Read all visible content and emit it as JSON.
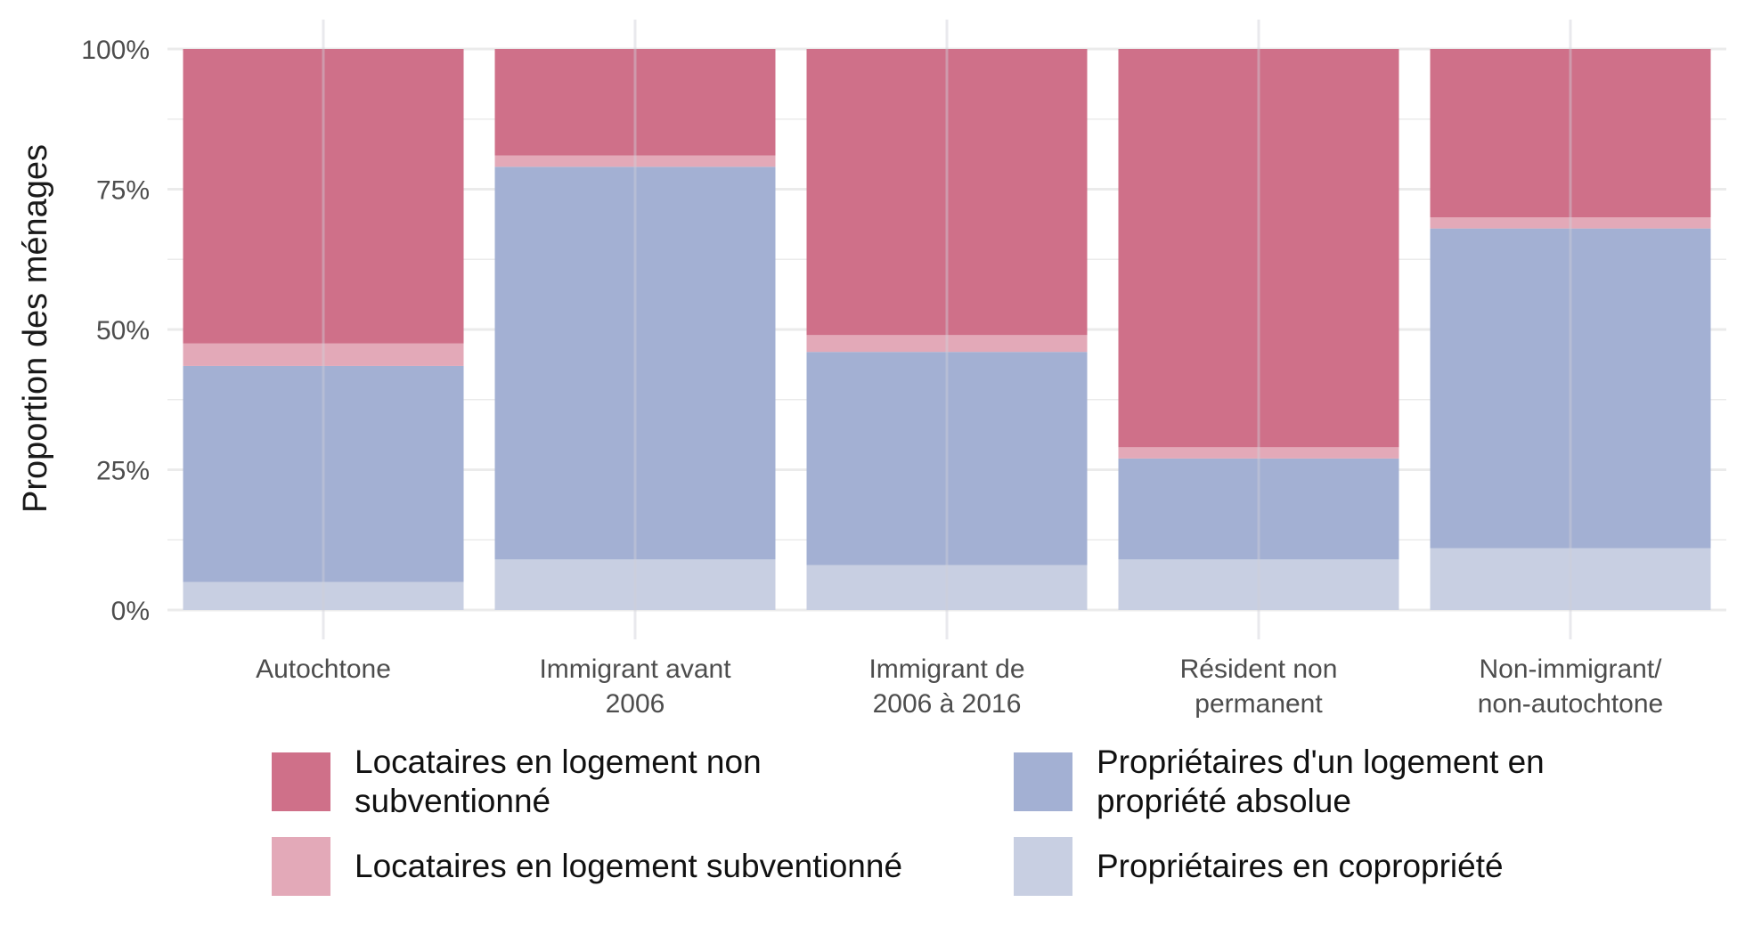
{
  "chart_data": {
    "type": "bar",
    "stacked": true,
    "orientation": "vertical",
    "title": "",
    "xlabel": "",
    "ylabel": "Proportion des ménages",
    "ylim": [
      0,
      100
    ],
    "y_ticks": [
      "0%",
      "25%",
      "50%",
      "75%",
      "100%"
    ],
    "y_tick_values": [
      0,
      25,
      50,
      75,
      100
    ],
    "grid": true,
    "legend_position": "bottom",
    "categories": [
      [
        "Autochtone"
      ],
      [
        "Immigrant avant",
        "2006"
      ],
      [
        "Immigrant de",
        "2006 à 2016"
      ],
      [
        "Résident non",
        "permanent"
      ],
      [
        "Non-immigrant/",
        "non-autochtone"
      ]
    ],
    "series": [
      {
        "name": "Propriétaires en copropriété",
        "color": "#c8cfe2",
        "values": [
          5,
          9,
          8,
          9,
          11
        ]
      },
      {
        "name": "Propriétaires d'un logement en propriété absolue",
        "color": "#a3b0d3",
        "values": [
          38.5,
          70,
          38,
          18,
          57
        ]
      },
      {
        "name": "Locataires en logement subventionné",
        "color": "#e3a9b8",
        "values": [
          4,
          2,
          3,
          2,
          2
        ]
      },
      {
        "name": "Locataires en logement non subventionné",
        "color": "#cf7089",
        "values": [
          52.5,
          19,
          51,
          71,
          30
        ]
      }
    ]
  },
  "legend": {
    "items": [
      {
        "label": "Locataires en logement non subventionné",
        "color": "#cf7089"
      },
      {
        "label": "Propriétaires d'un logement en propriété absolue",
        "color": "#a3b0d3"
      },
      {
        "label": "Locataires en logement subventionné",
        "color": "#e3a9b8"
      },
      {
        "label": "Propriétaires en copropriété",
        "color": "#c8cfe2"
      }
    ]
  }
}
